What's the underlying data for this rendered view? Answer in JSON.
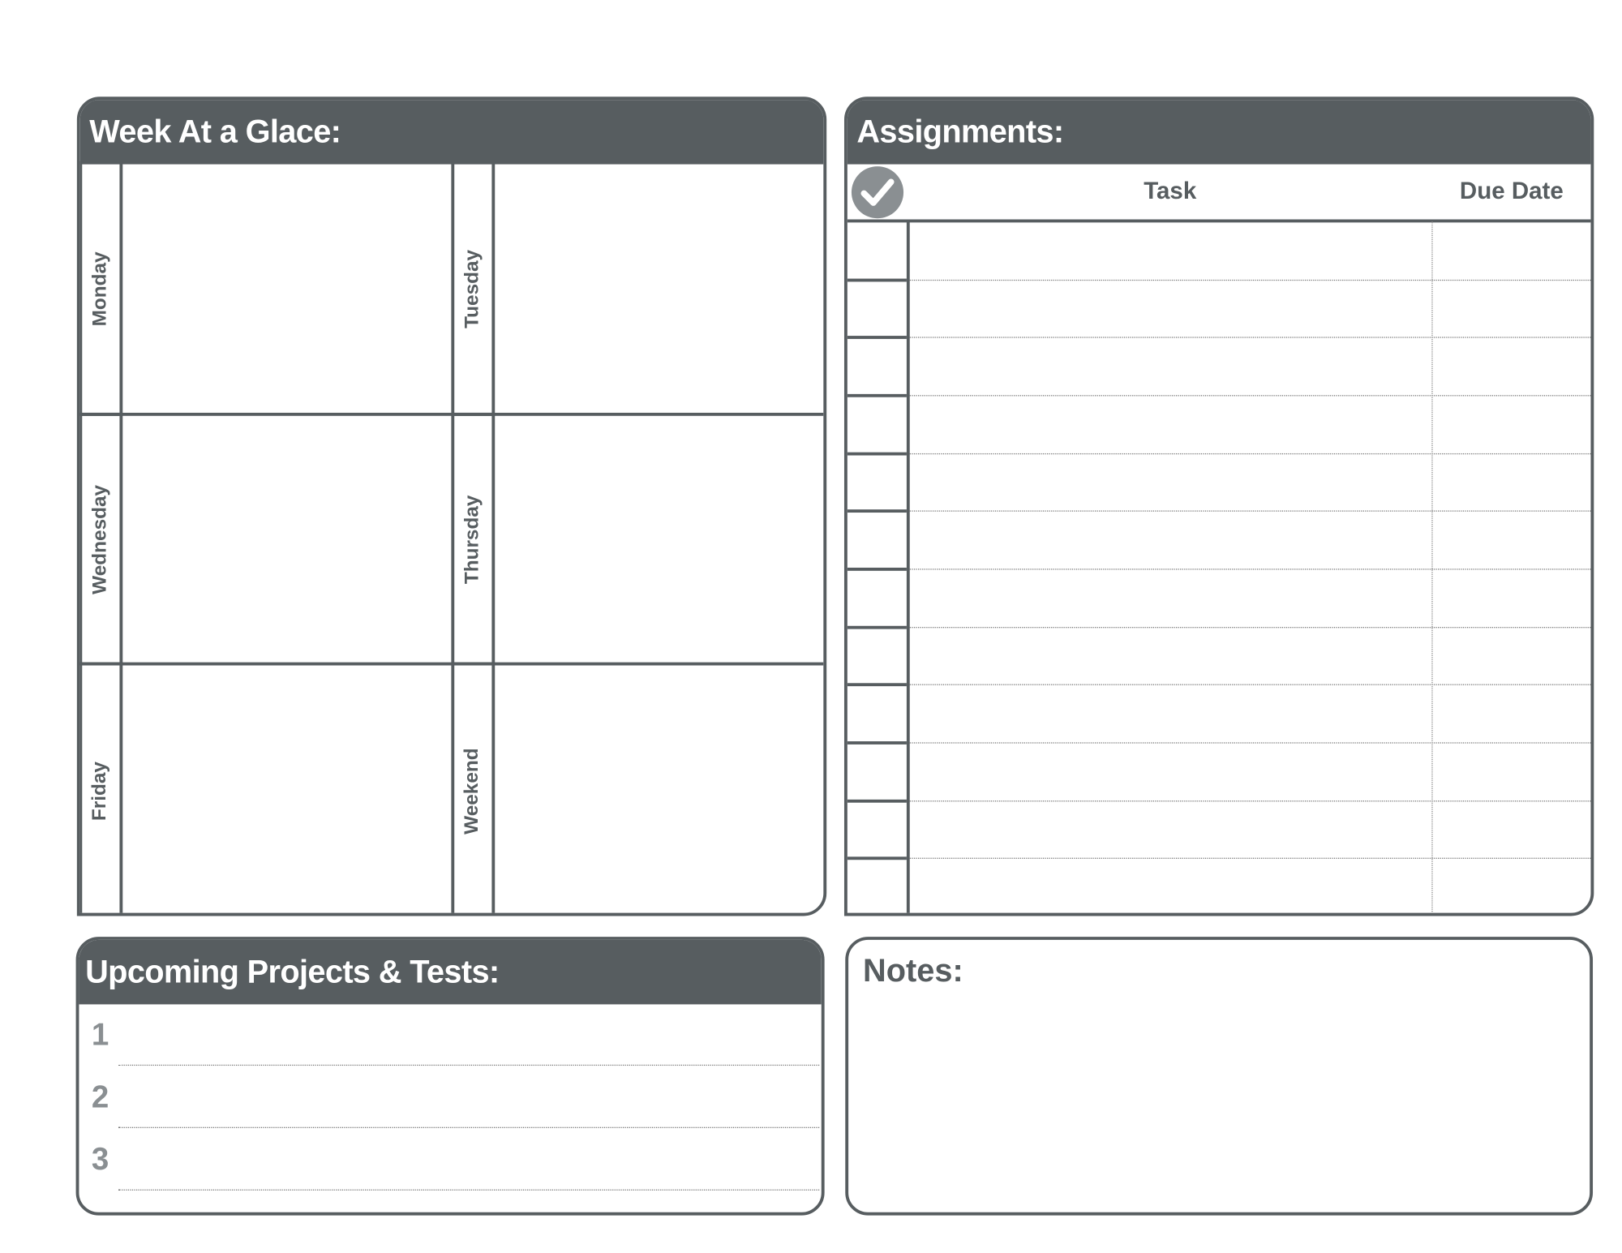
{
  "week": {
    "title": "Week At a Glace:",
    "days": [
      "Monday",
      "Tuesday",
      "Wednesday",
      "Thursday",
      "Friday",
      "Weekend"
    ]
  },
  "assignments": {
    "title": "Assignments:",
    "check_icon": "checkmark-circle-icon",
    "columns": {
      "task": "Task",
      "due_date": "Due Date"
    },
    "row_count": 12
  },
  "upcoming": {
    "title": "Upcoming Projects & Tests:",
    "items": [
      "1",
      "2",
      "3"
    ]
  },
  "notes": {
    "title": "Notes:"
  },
  "colors": {
    "header": "#575d60",
    "icon": "#8a8f92"
  }
}
